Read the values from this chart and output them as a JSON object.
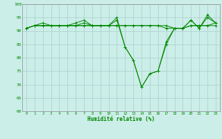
{
  "xlabel": "Humidité relative (%)",
  "ylabel": "",
  "bg_color": "#cceee8",
  "grid_color": "#aacccc",
  "line_color": "#008800",
  "ylim": [
    60,
    100
  ],
  "xlim": [
    -0.5,
    23.5
  ],
  "yticks": [
    60,
    65,
    70,
    75,
    80,
    85,
    90,
    95,
    100
  ],
  "xticks": [
    0,
    1,
    2,
    3,
    4,
    5,
    6,
    7,
    8,
    9,
    10,
    11,
    12,
    13,
    14,
    15,
    16,
    17,
    18,
    19,
    20,
    21,
    22,
    23
  ],
  "series": [
    [
      91,
      92,
      92,
      92,
      92,
      92,
      92,
      93,
      92,
      92,
      92,
      95,
      84,
      79,
      69,
      74,
      75,
      86,
      91,
      91,
      94,
      91,
      95,
      93
    ],
    [
      91,
      92,
      93,
      92,
      92,
      92,
      93,
      94,
      92,
      92,
      92,
      94,
      84,
      79,
      69,
      74,
      75,
      85,
      91,
      91,
      94,
      91,
      96,
      93
    ],
    [
      91,
      92,
      92,
      92,
      92,
      92,
      92,
      92,
      92,
      92,
      92,
      92,
      92,
      92,
      92,
      92,
      92,
      91,
      91,
      91,
      92,
      92,
      92,
      92
    ],
    [
      91,
      92,
      92,
      92,
      92,
      92,
      92,
      92,
      92,
      92,
      92,
      92,
      92,
      92,
      92,
      92,
      92,
      92,
      91,
      91,
      92,
      92,
      92,
      93
    ]
  ]
}
